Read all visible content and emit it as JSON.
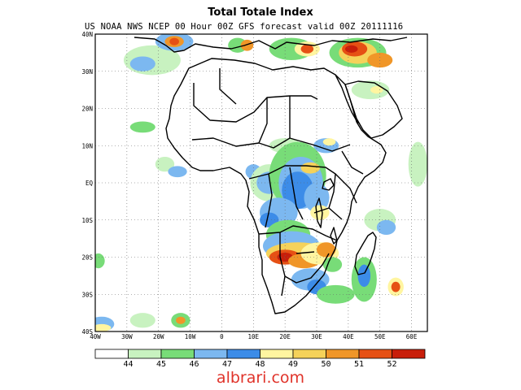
{
  "header": {
    "title": "Total Totale Index",
    "subtitle": "US NOAA NWS NCEP 00 Hour 00Z GFS forecast valid 00Z 20111116"
  },
  "axes": {
    "lat_labels": [
      "40N",
      "30N",
      "20N",
      "10N",
      "EQ",
      "10S",
      "20S",
      "30S",
      "40S"
    ],
    "lat_values": [
      40,
      30,
      20,
      10,
      0,
      -10,
      -20,
      -30,
      -40
    ],
    "lon_labels": [
      "40W",
      "30W",
      "20W",
      "10W",
      "0",
      "10E",
      "20E",
      "30E",
      "40E",
      "50E",
      "60E"
    ],
    "lon_values": [
      -40,
      -30,
      -20,
      -10,
      0,
      10,
      20,
      30,
      40,
      50,
      60
    ],
    "lon_range": [
      -40,
      65
    ],
    "lat_range": [
      -40,
      40
    ],
    "grid": "dotted"
  },
  "colorbar": {
    "labels": [
      "44",
      "45",
      "46",
      "47",
      "48",
      "49",
      "50",
      "51",
      "52"
    ],
    "colors": [
      "#ffffff",
      "#c8f2c0",
      "#78dc78",
      "#7cb8f0",
      "#3c8ce8",
      "#fff5a0",
      "#f5d25a",
      "#f09628",
      "#e65014",
      "#c81e0a"
    ]
  },
  "field_colors": {
    "v44": "#c8f2c0",
    "v45": "#78dc78",
    "v46": "#7cb8f0",
    "v47": "#3c8ce8",
    "v48": "#fff5a0",
    "v49": "#f5d25a",
    "v50": "#f09628",
    "v51": "#e65014",
    "v52": "#c81e0a"
  },
  "watermark": "albrari.com"
}
